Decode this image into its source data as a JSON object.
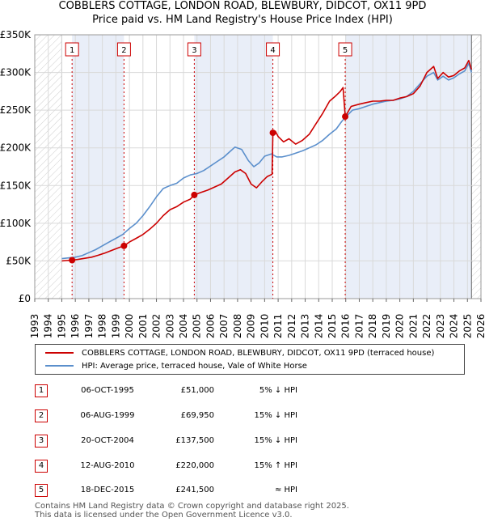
{
  "title_line1": "COBBLERS COTTAGE, LONDON ROAD, BLEWBURY, DIDCOT, OX11 9PD",
  "title_line2": "Price paid vs. HM Land Registry's House Price Index (HPI)",
  "colors": {
    "property": "#cc0000",
    "hpi": "#5b8fcc",
    "shade": "#e9eef8",
    "grid": "#d9d9d9"
  },
  "legend": {
    "property_label": "COBBLERS COTTAGE, LONDON ROAD, BLEWBURY, DIDCOT, OX11 9PD (terraced house)",
    "hpi_label": "HPI: Average price, terraced house, Vale of White Horse"
  },
  "transactions": [
    {
      "num": "1",
      "date": "06-OCT-1995",
      "price": "£51,000",
      "hpi_rel": "5% ↓ HPI"
    },
    {
      "num": "2",
      "date": "06-AUG-1999",
      "price": "£69,950",
      "hpi_rel": "15% ↓ HPI"
    },
    {
      "num": "3",
      "date": "20-OCT-2004",
      "price": "£137,500",
      "hpi_rel": "15% ↓ HPI"
    },
    {
      "num": "4",
      "date": "12-AUG-2010",
      "price": "£220,000",
      "hpi_rel": "15% ↑ HPI"
    },
    {
      "num": "5",
      "date": "18-DEC-2015",
      "price": "£241,500",
      "hpi_rel": "≈ HPI"
    }
  ],
  "footer": {
    "line1": "Contains HM Land Registry data © Crown copyright and database right 2025.",
    "line2": "This data is licensed under the Open Government Licence v3.0."
  },
  "chart_data": {
    "type": "line",
    "title": "Price paid vs. HM Land Registry's House Price Index (HPI)",
    "xlabel": "",
    "ylabel": "",
    "xlim": [
      1993,
      2026
    ],
    "ylim": [
      0,
      350000
    ],
    "data_range": [
      1995,
      2025.3
    ],
    "y_ticks": [
      {
        "value": 0,
        "label": "£0"
      },
      {
        "value": 50000,
        "label": "£50K"
      },
      {
        "value": 100000,
        "label": "£100K"
      },
      {
        "value": 150000,
        "label": "£150K"
      },
      {
        "value": 200000,
        "label": "£200K"
      },
      {
        "value": 250000,
        "label": "£250K"
      },
      {
        "value": 300000,
        "label": "£300K"
      },
      {
        "value": 350000,
        "label": "£350K"
      }
    ],
    "x_ticks": [
      "1993",
      "1994",
      "1995",
      "1996",
      "1997",
      "1998",
      "1999",
      "2000",
      "2001",
      "2002",
      "2003",
      "2004",
      "2005",
      "2006",
      "2007",
      "2008",
      "2009",
      "2010",
      "2011",
      "2012",
      "2013",
      "2014",
      "2015",
      "2016",
      "2017",
      "2018",
      "2019",
      "2020",
      "2021",
      "2022",
      "2023",
      "2024",
      "2025",
      "2026"
    ],
    "sales": [
      {
        "label": "1",
        "x": 1995.76,
        "value": 51000
      },
      {
        "label": "2",
        "x": 1999.6,
        "value": 69950
      },
      {
        "label": "3",
        "x": 2004.8,
        "value": 137500
      },
      {
        "label": "4",
        "x": 2010.61,
        "value": 220000
      },
      {
        "label": "5",
        "x": 2015.96,
        "value": 241500
      }
    ],
    "series": [
      {
        "name": "HPI: Average price, terraced house, Vale of White Horse",
        "x": [
          1995.0,
          1995.5,
          1996.0,
          1996.5,
          1997.0,
          1997.5,
          1998.0,
          1998.5,
          1999.0,
          1999.5,
          2000.0,
          2000.5,
          2001.0,
          2001.5,
          2002.0,
          2002.5,
          2003.0,
          2003.5,
          2004.0,
          2004.5,
          2005.0,
          2005.5,
          2006.0,
          2006.5,
          2007.0,
          2007.5,
          2007.8,
          2008.3,
          2008.8,
          2009.2,
          2009.6,
          2010.0,
          2010.5,
          2010.9,
          2011.3,
          2011.8,
          2012.3,
          2012.8,
          2013.3,
          2013.8,
          2014.3,
          2014.8,
          2015.3,
          2015.7,
          2016.0,
          2016.5,
          2017.0,
          2017.5,
          2018.0,
          2018.5,
          2019.0,
          2019.5,
          2020.0,
          2020.5,
          2021.0,
          2021.5,
          2022.0,
          2022.5,
          2022.8,
          2023.2,
          2023.6,
          2024.0,
          2024.4,
          2024.8,
          2025.1,
          2025.3
        ],
        "values": [
          53000,
          54000,
          55000,
          57000,
          61000,
          65000,
          70000,
          75000,
          80000,
          85000,
          93000,
          100000,
          110000,
          122000,
          135000,
          146000,
          150000,
          153000,
          160000,
          164000,
          166000,
          170000,
          176000,
          182000,
          188000,
          196000,
          201000,
          198000,
          183000,
          175000,
          180000,
          189000,
          192000,
          188000,
          188000,
          190000,
          193000,
          196000,
          200000,
          204000,
          210000,
          218000,
          225000,
          235000,
          241000,
          250000,
          252000,
          255000,
          258000,
          260000,
          262000,
          263000,
          265000,
          268000,
          275000,
          285000,
          295000,
          300000,
          290000,
          295000,
          290000,
          293000,
          298000,
          302000,
          312000,
          300000
        ]
      },
      {
        "name": "COBBLERS COTTAGE, LONDON ROAD, BLEWBURY, DIDCOT, OX11 9PD (terraced house)",
        "x": [
          1995.0,
          1995.3,
          1995.76,
          1996.2,
          1996.7,
          1997.2,
          1997.7,
          1998.2,
          1998.7,
          1999.2,
          1999.6,
          2000.0,
          2000.5,
          2001.0,
          2001.5,
          2002.0,
          2002.5,
          2003.0,
          2003.5,
          2004.0,
          2004.5,
          2004.8,
          2005.3,
          2005.8,
          2006.3,
          2006.8,
          2007.3,
          2007.8,
          2008.2,
          2008.6,
          2009.0,
          2009.4,
          2009.8,
          2010.2,
          2010.55,
          2010.61,
          2010.8,
          2011.0,
          2011.4,
          2011.8,
          2012.3,
          2012.8,
          2013.3,
          2013.8,
          2014.3,
          2014.8,
          2015.2,
          2015.6,
          2015.8,
          2015.96,
          2016.4,
          2017.0,
          2017.5,
          2018.0,
          2018.5,
          2019.0,
          2019.5,
          2020.0,
          2020.5,
          2021.0,
          2021.5,
          2022.0,
          2022.5,
          2022.8,
          2023.2,
          2023.6,
          2024.0,
          2024.4,
          2024.8,
          2025.1,
          2025.3
        ],
        "values": [
          50000,
          50500,
          51000,
          52000,
          53500,
          55000,
          57500,
          60500,
          64000,
          67500,
          69950,
          75000,
          80000,
          85000,
          92000,
          100000,
          110000,
          118000,
          122000,
          128000,
          132000,
          137500,
          141000,
          144000,
          148000,
          152000,
          160000,
          168000,
          171000,
          166000,
          152000,
          147000,
          155000,
          162000,
          165000,
          220000,
          222000,
          215000,
          208000,
          212000,
          205000,
          210000,
          218000,
          232000,
          246000,
          262000,
          268000,
          275000,
          280000,
          241500,
          255000,
          258000,
          260000,
          262000,
          262000,
          263000,
          263000,
          266000,
          268000,
          272000,
          282000,
          300000,
          308000,
          292000,
          300000,
          294000,
          296000,
          302000,
          306000,
          316000,
          304000
        ]
      }
    ]
  }
}
